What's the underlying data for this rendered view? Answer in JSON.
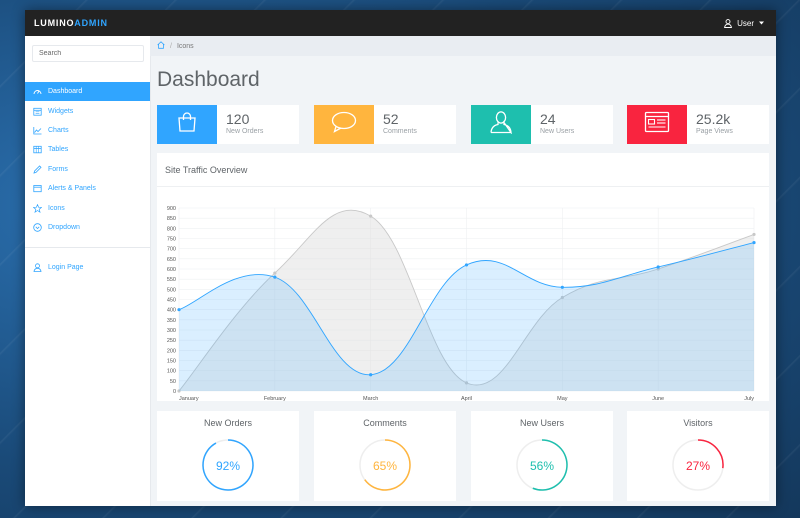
{
  "brand": {
    "part1": "LUMINO",
    "part2": "ADMIN"
  },
  "user": {
    "label": "User",
    "user_icon": "user-icon",
    "caret_icon": "caret-down-icon"
  },
  "sidebar": {
    "search_placeholder": "Search",
    "items": [
      {
        "label": "Dashboard",
        "icon": "dashboard-icon",
        "active": true
      },
      {
        "label": "Widgets",
        "icon": "calendar-icon"
      },
      {
        "label": "Charts",
        "icon": "line-chart-icon"
      },
      {
        "label": "Tables",
        "icon": "table-icon"
      },
      {
        "label": "Forms",
        "icon": "pencil-icon"
      },
      {
        "label": "Alerts & Panels",
        "icon": "panel-icon"
      },
      {
        "label": "Icons",
        "icon": "star-icon"
      },
      {
        "label": "Dropdown",
        "icon": "dropdown-icon"
      }
    ],
    "login": {
      "label": "Login Page",
      "icon": "user-icon"
    }
  },
  "breadcrumb": {
    "home_icon": "home-icon",
    "separator": "/",
    "current": "Icons"
  },
  "page_title": "Dashboard",
  "stats": [
    {
      "value": "120",
      "label": "New Orders",
      "color": "#30a5ff",
      "icon": "shopping-bag-icon"
    },
    {
      "value": "52",
      "label": "Comments",
      "color": "#ffb53e",
      "icon": "comment-icon"
    },
    {
      "value": "24",
      "label": "New Users",
      "color": "#1ebfae",
      "icon": "user-icon"
    },
    {
      "value": "25.2k",
      "label": "Page Views",
      "color": "#f9243f",
      "icon": "browser-window-icon"
    }
  ],
  "chart_panel_title": "Site Traffic Overview",
  "chart_data": {
    "type": "area",
    "title": "Site Traffic Overview",
    "categories": [
      "January",
      "February",
      "March",
      "April",
      "May",
      "June",
      "July"
    ],
    "ylim": [
      0,
      900
    ],
    "y_ticks": [
      0,
      50,
      100,
      150,
      200,
      250,
      300,
      350,
      400,
      450,
      500,
      550,
      600,
      650,
      700,
      750,
      800,
      850,
      900
    ],
    "grid": true,
    "series": [
      {
        "values": [
          0,
          580,
          860,
          40,
          460,
          600,
          770
        ],
        "color": "#c8c8c8"
      },
      {
        "values": [
          400,
          560,
          80,
          620,
          510,
          610,
          730
        ],
        "color": "#30a5ff"
      }
    ]
  },
  "progress_panels": [
    {
      "title": "New Orders",
      "percent_label": "92%",
      "value": 0.92,
      "color": "#30a5ff"
    },
    {
      "title": "Comments",
      "percent_label": "65%",
      "value": 0.65,
      "color": "#ffb53e"
    },
    {
      "title": "New Users",
      "percent_label": "56%",
      "value": 0.56,
      "color": "#1ebfae"
    },
    {
      "title": "Visitors",
      "percent_label": "27%",
      "value": 0.27,
      "color": "#f9243f"
    }
  ]
}
